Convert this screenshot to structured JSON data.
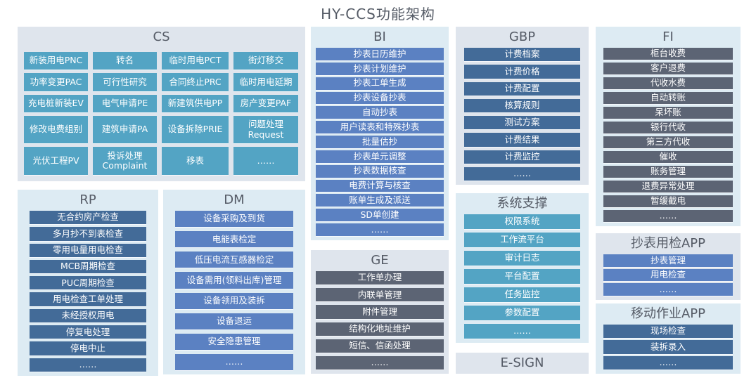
{
  "title": "HY-CCS功能架构",
  "colors": {
    "teal": "#53a4c4",
    "dark_blue": "#436b98",
    "medium_blue": "#5b81c2",
    "grey": "#5c6474",
    "panel_bg": "#dfe5ed",
    "panel_bg_light": "#ddebf3"
  },
  "panels": {
    "cs": {
      "title": "CS",
      "items": [
        "新装用电PNC",
        "转名",
        "临时用电PCT",
        "街灯移交",
        "功率变更PAC",
        "可行性研究",
        "合同终止PRC",
        "临时用电延期",
        "充电桩新装EV",
        "电气申请PE",
        "新建筑供电PP",
        "房产变更PAF",
        "修改电费组别",
        "建筑申请PA",
        "设备拆除PRIE",
        "问题处理\nRequest",
        "光伏工程PV",
        "投诉处理\nComplaint",
        "移表",
        "……"
      ]
    },
    "rp": {
      "title": "RP",
      "items": [
        "无合约房产检查",
        "多月抄不到表检查",
        "零用电量用电检查",
        "MCB周期检查",
        "PUC周期检查",
        "用电检查工单处理",
        "未经授权用电",
        "停复电处理",
        "停电中止",
        "……"
      ]
    },
    "dm": {
      "title": "DM",
      "items": [
        "设备采购及到货",
        "电能表检定",
        "低压电流互感器检定",
        "设备需用(领料出库)管理",
        "设备领用及装拆",
        "设备退运",
        "安全隐患管理",
        "……"
      ]
    },
    "bi": {
      "title": "BI",
      "items": [
        "抄表日历维护",
        "抄表计划维护",
        "抄表工单生成",
        "抄表设备抄表",
        "自动抄表",
        "用户读表和特殊抄表",
        "批量估抄",
        "抄表单元调整",
        "抄表数据核查",
        "电费计算与核查",
        "账单生成及派送",
        "SD单创建",
        "……"
      ]
    },
    "ge": {
      "title": "GE",
      "items": [
        "工作单办理",
        "内联单管理",
        "附件管理",
        "结构化地址维护",
        "短信、信函处理",
        "……"
      ]
    },
    "gbp": {
      "title": "GBP",
      "items": [
        "计费档案",
        "计费价格",
        "计费配置",
        "核算规则",
        "测试方案",
        "计费结果",
        "计费监控",
        "……"
      ]
    },
    "sys": {
      "title": "系统支撑",
      "items": [
        "权限系统",
        "工作流平台",
        "审计日志",
        "平台配置",
        "任务监控",
        "参数配置",
        "……"
      ]
    },
    "esign": {
      "title": "E-SIGN"
    },
    "fi": {
      "title": "FI",
      "items": [
        "柜台收费",
        "客户退费",
        "代收水费",
        "自动转账",
        "呆坏账",
        "银行代收",
        "第三方代收",
        "催收",
        "账务管理",
        "退费异常处理",
        "暂缓截电",
        "……"
      ]
    },
    "app1": {
      "title": "抄表用检APP",
      "items": [
        "抄表管理",
        "用电检查",
        "……"
      ]
    },
    "app2": {
      "title": "移动作业APP",
      "items": [
        "现场检查",
        "装拆录入",
        "……"
      ]
    }
  }
}
